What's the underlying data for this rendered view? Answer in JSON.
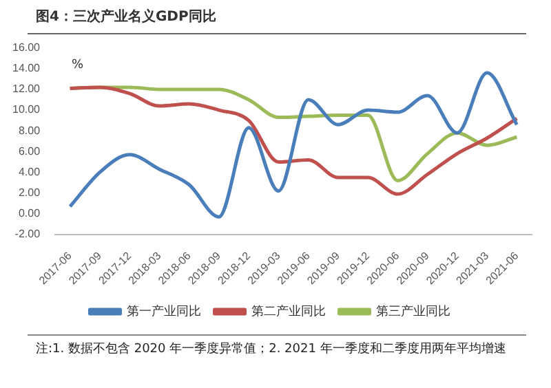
{
  "chart_data": {
    "type": "line",
    "title": "图4：三次产业名义GDP同比",
    "ylabel": "%",
    "categories": [
      "2017-06",
      "2017-09",
      "2017-12",
      "2018-03",
      "2018-06",
      "2018-09",
      "2018-12",
      "2019-03",
      "2019-06",
      "2019-09",
      "2019-12",
      "2020-06",
      "2020-09",
      "2020-12",
      "2021-03",
      "2021-06"
    ],
    "series": [
      {
        "name": "第一产业同比",
        "color": "#4a7ebb",
        "values": [
          0.7,
          4.0,
          5.7,
          4.3,
          2.8,
          -0.3,
          8.3,
          2.2,
          11.0,
          8.6,
          10.0,
          9.8,
          11.4,
          7.8,
          13.6,
          8.6
        ]
      },
      {
        "name": "第二产业同比",
        "color": "#c0504d",
        "values": [
          12.1,
          12.2,
          11.6,
          10.4,
          10.6,
          10.0,
          9.0,
          5.0,
          5.2,
          3.5,
          3.5,
          1.9,
          3.8,
          5.8,
          7.3,
          9.2
        ]
      },
      {
        "name": "第三产业同比",
        "color": "#9bbb59",
        "values": [
          12.1,
          12.2,
          12.2,
          12.0,
          12.0,
          12.0,
          11.0,
          9.3,
          9.4,
          9.5,
          9.5,
          3.2,
          5.8,
          7.8,
          6.6,
          7.4
        ]
      }
    ],
    "ylim": [
      -2,
      16
    ],
    "yticks": [
      {
        "value": -2,
        "label": "-2.00"
      },
      {
        "value": 0,
        "label": "0.00"
      },
      {
        "value": 2,
        "label": "2.00"
      },
      {
        "value": 4,
        "label": "4.00"
      },
      {
        "value": 6,
        "label": "6.00"
      },
      {
        "value": 8,
        "label": "8.00"
      },
      {
        "value": 10,
        "label": "10.00"
      },
      {
        "value": 12,
        "label": "12.00"
      },
      {
        "value": 14,
        "label": "14.00"
      },
      {
        "value": 16,
        "label": "16.00"
      }
    ],
    "grid": false,
    "legend": "bottom",
    "marker": "none",
    "line_style": "solid",
    "annotations": [
      "注:1. 数据不包含 2020 年一季度异常值；2. 2021 年一季度和二季度用两年平均增速"
    ]
  }
}
